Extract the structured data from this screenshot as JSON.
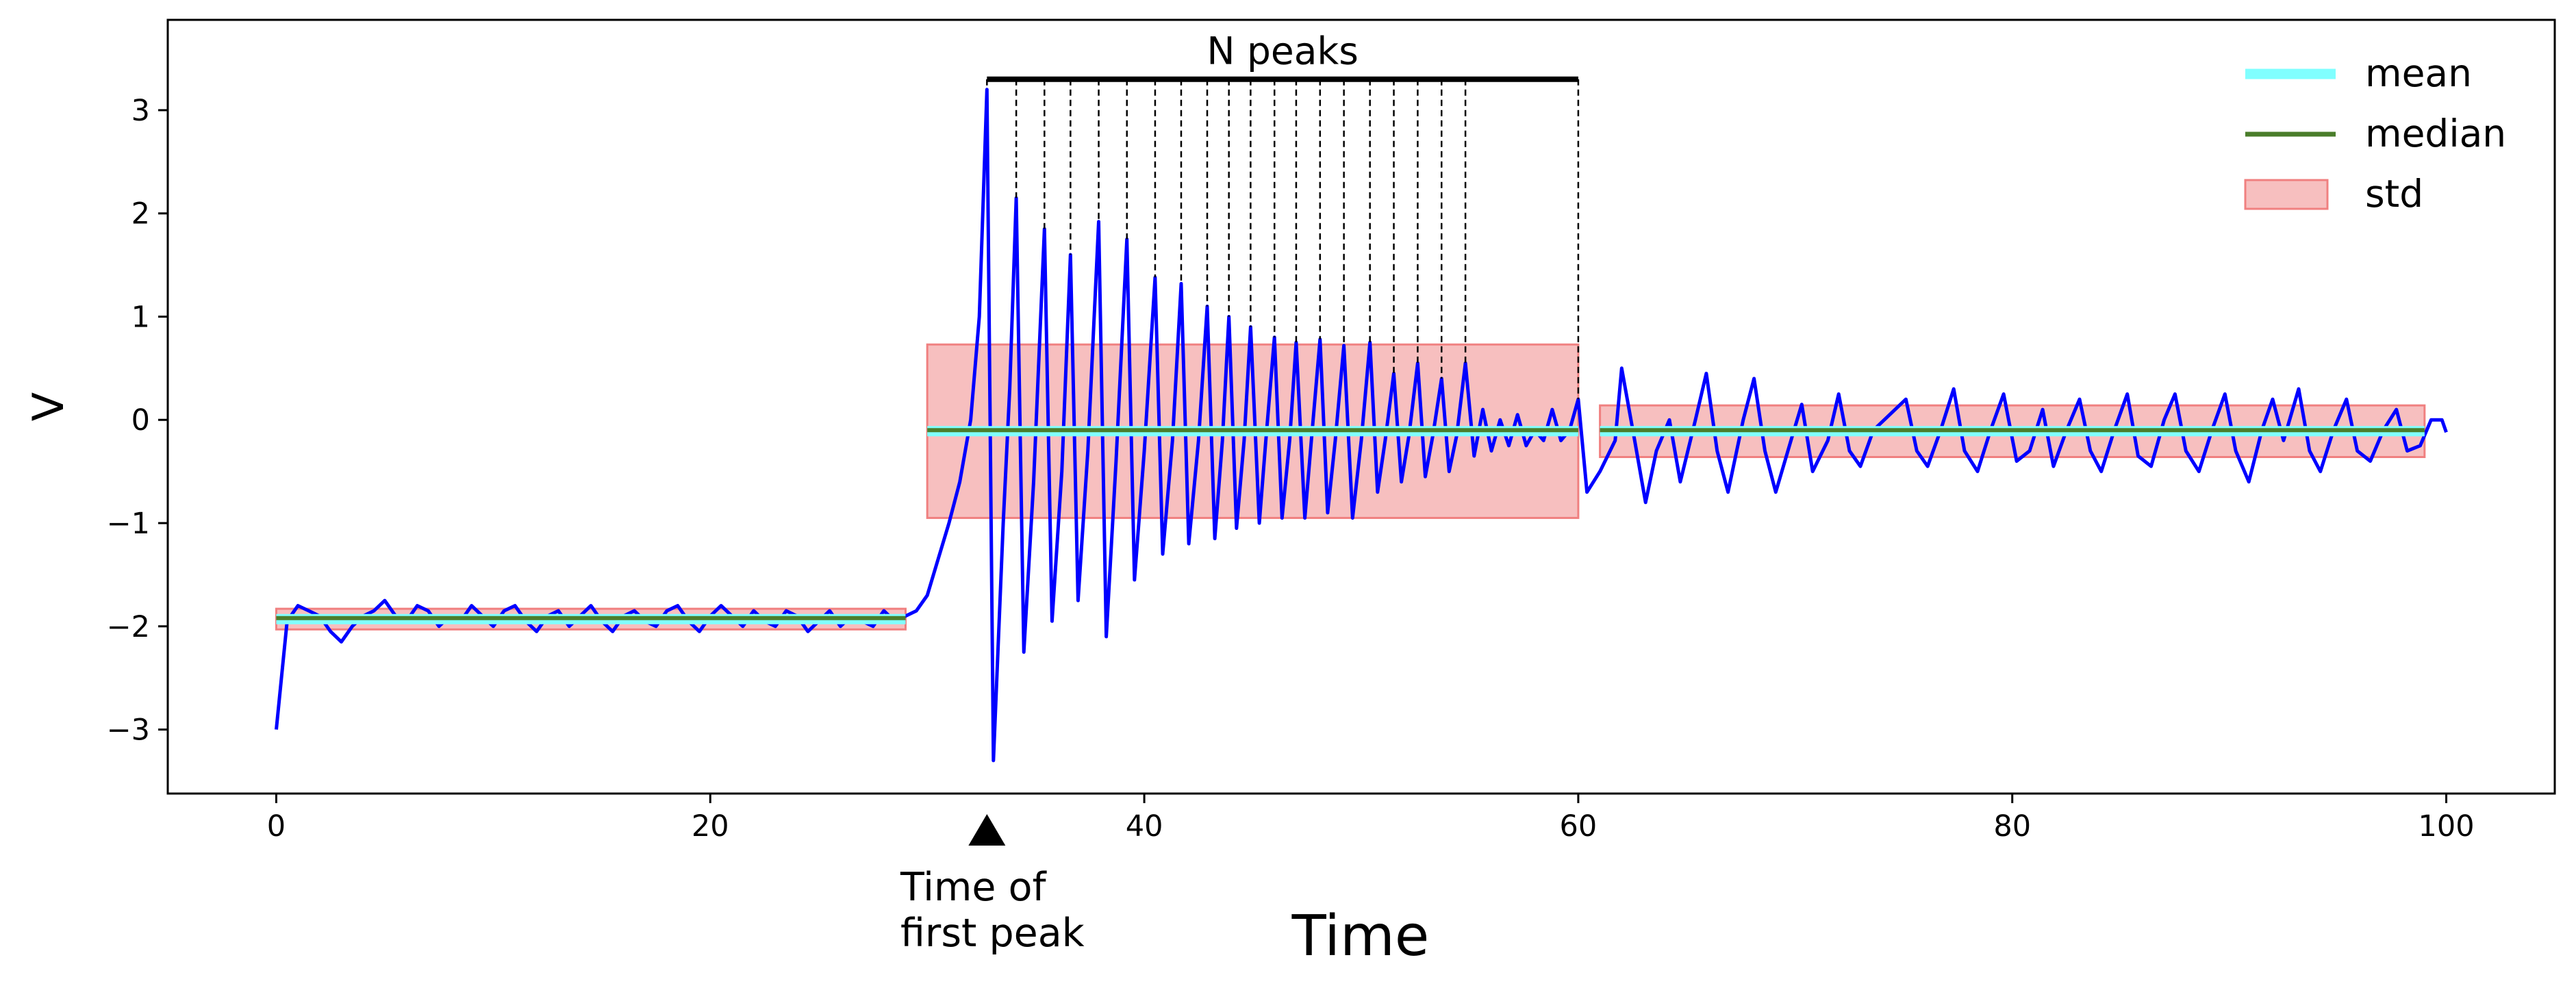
{
  "chart_data": {
    "type": "line",
    "xlabel": "Time",
    "ylabel": "V",
    "xlim": [
      -5,
      105
    ],
    "ylim": [
      -3.62,
      3.875
    ],
    "xticks": [
      0,
      20,
      40,
      60,
      80,
      100
    ],
    "yticks": [
      {
        "value": -3,
        "label": "−3"
      },
      {
        "value": -2,
        "label": "−2"
      },
      {
        "value": -1,
        "label": "−1"
      },
      0,
      1,
      2,
      3
    ],
    "color": "#0000ff",
    "x": [
      0,
      0.5,
      1,
      1.5,
      2,
      2.5,
      3,
      3.5,
      4,
      4.5,
      5,
      5.5,
      6,
      6.5,
      7,
      7.5,
      8,
      8.5,
      9,
      9.5,
      10,
      10.5,
      11,
      11.5,
      12,
      12.5,
      13,
      13.5,
      14,
      14.5,
      15,
      15.5,
      16,
      16.5,
      17,
      17.5,
      18,
      18.5,
      19,
      19.5,
      20,
      20.5,
      21,
      21.5,
      22,
      22.5,
      23,
      23.5,
      24,
      24.5,
      25,
      25.5,
      26,
      26.5,
      27,
      27.5,
      28,
      28.5,
      29,
      29.5,
      30,
      30.5,
      31,
      31.5,
      32,
      32.4,
      32.75,
      33.05,
      33.5,
      33.8,
      34.1,
      34.45,
      34.9,
      35.4,
      35.75,
      36.2,
      36.6,
      36.95,
      37.4,
      37.9,
      38.25,
      38.7,
      39.2,
      39.55,
      40.0,
      40.5,
      40.85,
      41.3,
      41.7,
      42.05,
      42.5,
      42.9,
      43.25,
      43.6,
      43.9,
      44.25,
      44.6,
      44.9,
      45.3,
      45.6,
      46.0,
      46.35,
      46.7,
      47.0,
      47.4,
      47.7,
      48.1,
      48.45,
      48.8,
      49.2,
      49.6,
      50.0,
      50.4,
      50.75,
      51.1,
      51.5,
      51.85,
      52.2,
      52.6,
      52.95,
      53.3,
      53.7,
      54.05,
      54.4,
      54.8,
      55.2,
      55.6,
      56.0,
      56.4,
      56.8,
      57.2,
      57.6,
      58.0,
      58.4,
      58.8,
      59.2,
      59.6,
      60.0,
      60.4,
      61,
      61.7,
      62,
      62.6,
      63.1,
      63.6,
      64.2,
      64.7,
      65.4,
      65.9,
      66.4,
      66.9,
      67.6,
      68.1,
      68.6,
      69.1,
      69.8,
      70.3,
      70.8,
      71.5,
      72.0,
      72.5,
      73.0,
      73.6,
      75.1,
      75.6,
      76.1,
      76.7,
      77.3,
      77.8,
      78.4,
      79.0,
      79.6,
      80.2,
      80.8,
      81.4,
      81.9,
      82.5,
      83.1,
      83.6,
      84.1,
      84.7,
      85.3,
      85.8,
      86.4,
      87.0,
      87.5,
      88.0,
      88.6,
      89.2,
      89.8,
      90.3,
      90.9,
      91.5,
      92.0,
      92.5,
      93.2,
      93.7,
      94.2,
      94.8,
      95.4,
      95.9,
      96.5,
      97.1,
      97.7,
      98.2,
      98.8,
      99.3,
      99.8,
      100.0
    ],
    "values": [
      -3.0,
      -1.95,
      -1.8,
      -1.85,
      -1.9,
      -2.05,
      -2.15,
      -2.0,
      -1.9,
      -1.85,
      -1.75,
      -1.9,
      -1.95,
      -1.8,
      -1.85,
      -2.0,
      -1.9,
      -1.95,
      -1.8,
      -1.9,
      -2.0,
      -1.85,
      -1.8,
      -1.95,
      -2.05,
      -1.9,
      -1.85,
      -2.0,
      -1.9,
      -1.8,
      -1.95,
      -2.05,
      -1.9,
      -1.85,
      -1.95,
      -2.0,
      -1.85,
      -1.8,
      -1.95,
      -2.05,
      -1.9,
      -1.8,
      -1.9,
      -2.0,
      -1.85,
      -1.95,
      -2.0,
      -1.85,
      -1.9,
      -2.05,
      -1.95,
      -1.85,
      -2.0,
      -1.9,
      -1.95,
      -2.0,
      -1.85,
      -1.95,
      -1.9,
      -1.85,
      -1.7,
      -1.35,
      -1.0,
      -0.6,
      0.0,
      1.0,
      3.2,
      -3.3,
      -1.0,
      0.3,
      2.15,
      -2.25,
      -0.6,
      1.85,
      -1.95,
      -0.5,
      1.6,
      -1.75,
      -0.3,
      1.92,
      -2.1,
      -0.4,
      1.75,
      -1.55,
      -0.3,
      1.38,
      -1.3,
      -0.2,
      1.32,
      -1.2,
      -0.2,
      1.1,
      -1.15,
      -0.2,
      1.0,
      -1.05,
      -0.2,
      0.9,
      -1.0,
      -0.2,
      0.8,
      -0.95,
      -0.2,
      0.75,
      -0.95,
      -0.2,
      0.78,
      -0.9,
      -0.2,
      0.72,
      -0.95,
      -0.2,
      0.75,
      -0.7,
      -0.2,
      0.45,
      -0.6,
      -0.15,
      0.55,
      -0.55,
      -0.15,
      0.4,
      -0.5,
      -0.15,
      0.55,
      -0.35,
      0.1,
      -0.3,
      0.0,
      -0.25,
      0.05,
      -0.25,
      -0.1,
      -0.2,
      0.1,
      -0.2,
      -0.1,
      0.2,
      -0.7,
      -0.5,
      -0.2,
      0.5,
      -0.2,
      -0.8,
      -0.3,
      0.0,
      -0.6,
      0.0,
      0.45,
      -0.3,
      -0.7,
      0.0,
      0.4,
      -0.3,
      -0.7,
      -0.2,
      0.15,
      -0.5,
      -0.2,
      0.25,
      -0.3,
      -0.45,
      -0.1,
      0.2,
      -0.3,
      -0.45,
      -0.1,
      0.3,
      -0.3,
      -0.5,
      -0.1,
      0.25,
      -0.4,
      -0.3,
      0.1,
      -0.45,
      -0.1,
      0.2,
      -0.3,
      -0.5,
      -0.1,
      0.25,
      -0.35,
      -0.45,
      0.0,
      0.25,
      -0.3,
      -0.5,
      -0.1,
      0.25,
      -0.3,
      -0.6,
      -0.1,
      0.2,
      -0.2,
      0.3,
      -0.3,
      -0.5,
      -0.1,
      0.2,
      -0.3,
      -0.4,
      -0.1,
      0.1,
      -0.3,
      -0.25,
      0.0,
      0.0,
      -0.12
    ],
    "windows": [
      {
        "start": 0,
        "end": 29,
        "mean": -1.93,
        "median": -1.92,
        "std": 0.1
      },
      {
        "start": 30,
        "end": 60,
        "mean": -0.11,
        "median": -0.1,
        "std": 0.84
      },
      {
        "start": 61,
        "end": 99,
        "mean": -0.11,
        "median": -0.1,
        "std": 0.25
      }
    ],
    "peaks": {
      "x": [
        32.75,
        34.1,
        35.4,
        36.6,
        37.9,
        39.2,
        40.5,
        41.7,
        42.9,
        43.9,
        44.9,
        46.0,
        47.0,
        48.1,
        49.2,
        50.4,
        51.5,
        52.6,
        53.7,
        54.8
      ],
      "values": [
        3.2,
        2.15,
        1.85,
        1.6,
        1.92,
        1.75,
        1.38,
        1.32,
        1.1,
        1.0,
        0.9,
        0.8,
        0.75,
        0.78,
        0.72,
        0.75,
        0.45,
        0.55,
        0.4,
        0.55
      ]
    },
    "n_peaks": {
      "label": "N peaks",
      "end": 60,
      "level": 3.3
    },
    "first_peak": {
      "lines": [
        "Time of",
        "first peak"
      ]
    },
    "legend": {
      "loc": "upper right",
      "entries": [
        {
          "label": "mean",
          "color": "#80ffff"
        },
        {
          "label": "median",
          "color": "#4a7d2b"
        },
        {
          "label": "std",
          "color": "#f08080"
        }
      ]
    }
  }
}
